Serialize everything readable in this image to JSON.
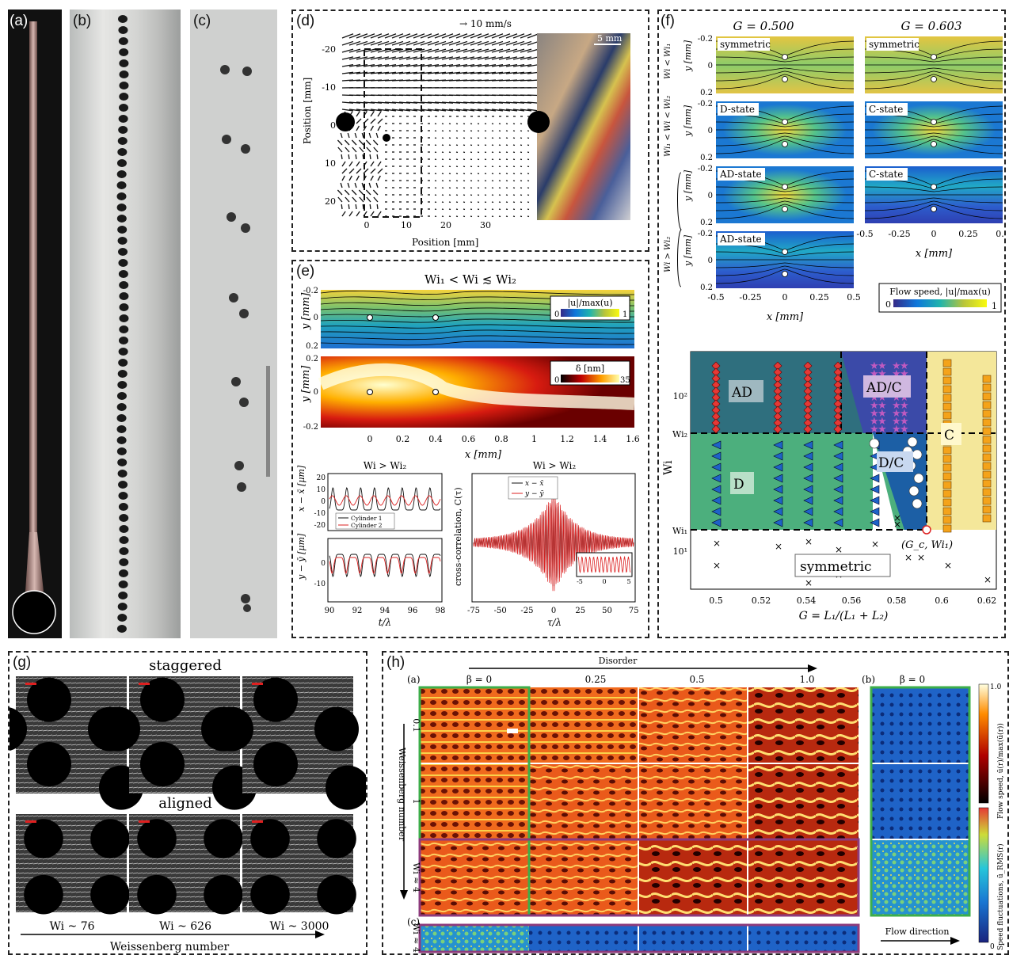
{
  "labels": {
    "a": "(a)",
    "b": "(b)",
    "c": "(c)",
    "d": "(d)",
    "e": "(e)",
    "f": "(f)",
    "g": "(g)",
    "h": "(h)",
    "h_a": "(a)",
    "h_b": "(b)",
    "h_c": "(c)"
  },
  "panel_d": {
    "scale_vector": "→ 10 mm/s",
    "scale_bar": "5 mm",
    "ylabel": "Position [mm]",
    "xlabel": "Position [mm]",
    "yticks": [
      "-20",
      "-10",
      "0",
      "10",
      "20"
    ],
    "xticks": [
      "0",
      "10",
      "20",
      "30"
    ]
  },
  "panel_e": {
    "title": "Wi₁ < Wi ≲ Wi₂",
    "ylabel": "y [mm]",
    "xlabel": "x [mm]",
    "top_yticks": [
      "-0.2",
      "0",
      "0.2"
    ],
    "mid_yticks": [
      "0.2",
      "0",
      "-0.2"
    ],
    "xticks": [
      "0",
      "0.2",
      "0.4",
      "0.6",
      "0.8",
      "1",
      "1.2",
      "1.4",
      "1.6"
    ],
    "cb1_label": "|u|/max(u)",
    "cb1_min": "0",
    "cb1_max": "1",
    "cb2_label": "δ [nm]",
    "cb2_min": "0",
    "cb2_max": "35",
    "ts_title": "Wi > Wi₂",
    "ts_top_ylabel": "x − x̄ [μm]",
    "ts_bot_ylabel": "y − ȳ [μm]",
    "ts_top_yticks": [
      "20",
      "10",
      "0",
      "-10",
      "-20"
    ],
    "ts_bot_yticks": [
      "0",
      "-10"
    ],
    "ts_xticks": [
      "90",
      "92",
      "94",
      "96",
      "98"
    ],
    "ts_xlabel": "t/λ",
    "ts_legend": [
      "Cylinder 1",
      "Cylinder 2"
    ],
    "cc_title": "Wi > Wi₂",
    "cc_ylabel": "cross-correlation, C(τ)",
    "cc_xlabel": "τ/λ",
    "cc_xticks": [
      "-75",
      "-50",
      "-25",
      "0",
      "25",
      "50",
      "75"
    ],
    "cc_legend": [
      "x − x̄",
      "y − ȳ"
    ],
    "inset_xticks": [
      "-5",
      "0",
      "5"
    ]
  },
  "panel_f": {
    "col_titles": [
      "G = 0.500",
      "G = 0.603"
    ],
    "row_labels": [
      "Wi < Wi₁",
      "Wi₁ < Wi < Wi₂",
      "Wi > Wi₂"
    ],
    "states_left": [
      "symmetric",
      "D-state",
      "AD-state",
      "AD-state"
    ],
    "states_right": [
      "symmetric",
      "C-state",
      "C-state"
    ],
    "ylabel": "y [mm]",
    "xlabel": "x [mm]",
    "yticks": [
      "-0.2",
      "0",
      "0.2"
    ],
    "xticks": [
      "-0.5",
      "-0.25",
      "0",
      "0.25",
      "0.5"
    ],
    "cb_label": "Flow speed, |u|/max(u)",
    "cb_min": "0",
    "cb_max": "1",
    "phase": {
      "regions": [
        "AD",
        "AD/C",
        "D",
        "D/C",
        "C",
        "symmetric"
      ],
      "ylabel": "Wi",
      "xlabel": "G = L₁/(L₁ + L₂)",
      "yticks": [
        "10¹",
        "Wi₁",
        "Wi₂",
        "10²"
      ],
      "xticks": [
        "0.5",
        "0.52",
        "0.54",
        "0.56",
        "0.58",
        "0.6",
        "0.62"
      ],
      "critical": "(G_c, Wi₁)"
    }
  },
  "panel_g": {
    "row1": "staggered",
    "row2": "aligned",
    "cols": [
      "Wi ~ 76",
      "Wi ~ 626",
      "Wi ~ 3000"
    ],
    "axis": "Weissenberg number"
  },
  "panel_h": {
    "disorder": "Disorder",
    "betas": [
      "β = 0",
      "0.25",
      "0.5",
      "1.0"
    ],
    "b_beta": "β = 0",
    "wi_rows": [
      "0.1",
      "1",
      "Wi ≈ 4"
    ],
    "wi_axis": "Weissenberg number",
    "c_row": "Wi ≈ 4",
    "flow_dir": "Flow direction",
    "cb1_label": "Flow speed, ū(r)/max(ū(r))",
    "cb2_label": "Speed fluctuations, ū_RMS(r)",
    "cb_max": "1.0",
    "cb_min": "0"
  },
  "colors": {
    "accent_green": "#3cae4a",
    "accent_purple": "#8d3b7c",
    "phase_teal": "#2f6f7e",
    "phase_green": "#4caf7d",
    "phase_blue": "#1c5fa5",
    "phase_yellow": "#f4e79a"
  }
}
